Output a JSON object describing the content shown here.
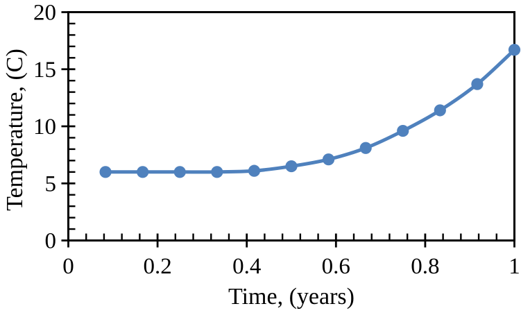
{
  "chart_data": {
    "type": "line",
    "title": "",
    "xlabel": "Time, (years)",
    "ylabel": "Temperature, (C)",
    "x": [
      0.0833,
      0.1667,
      0.25,
      0.3333,
      0.4167,
      0.5,
      0.5833,
      0.6667,
      0.75,
      0.8333,
      0.9167,
      1.0
    ],
    "series": [
      {
        "name": "Temperature",
        "values": [
          6.0,
          6.0,
          6.0,
          6.0,
          6.1,
          6.5,
          7.1,
          8.1,
          9.6,
          11.4,
          13.7,
          16.7
        ]
      }
    ],
    "xlim": [
      0,
      1
    ],
    "ylim": [
      0,
      20
    ],
    "x_major_ticks": [
      0,
      0.2,
      0.4,
      0.6,
      0.8,
      1
    ],
    "x_tick_labels": [
      "0",
      "0.2",
      "0.4",
      "0.6",
      "0.8",
      "1"
    ],
    "y_major_ticks": [
      0,
      5,
      10,
      15,
      20
    ],
    "y_tick_labels": [
      "0",
      "5",
      "10",
      "15",
      "20"
    ],
    "x_minor_step": 0.04,
    "y_minor_step": 1,
    "grid": false,
    "legend_position": "none",
    "smooth_line": true,
    "line_color": "#4F81BD",
    "marker_color": "#4F81BD",
    "marker": "circle",
    "axis_color": "#000000",
    "background_color": "#FFFFFF"
  }
}
